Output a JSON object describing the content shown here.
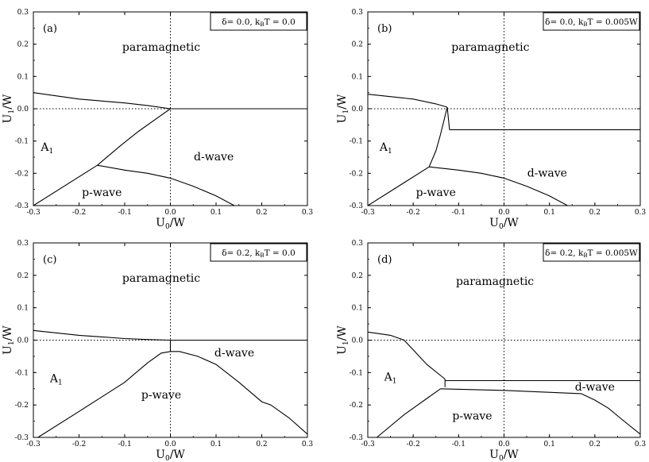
{
  "xtick_labels": [
    "-0.3",
    "-0.2",
    "-0.1",
    "0.0",
    "0.1",
    "0.2",
    "0.3"
  ],
  "ytick_labels": [
    "0.3",
    "0.2",
    "0.1",
    "0.0",
    "-0.1",
    "-0.2",
    "-0.3"
  ],
  "chart_data": [
    {
      "type": "line",
      "panel": "(a)",
      "condition": "δ= 0.0, kBT = 0.0",
      "xlabel": "U0/W",
      "ylabel": "U1/W",
      "xlim": [
        -0.3,
        0.3
      ],
      "ylim": [
        -0.3,
        0.3
      ],
      "reference_lines": {
        "x": 0.0,
        "y": 0.0,
        "style": "dotted"
      },
      "regions": [
        {
          "label": "paramagnetic",
          "x": -0.02,
          "y": 0.18
        },
        {
          "label": "A1",
          "x": -0.27,
          "y": -0.13
        },
        {
          "label": "d-wave",
          "x": 0.095,
          "y": -0.16
        },
        {
          "label": "p-wave",
          "x": -0.15,
          "y": -0.27
        }
      ],
      "series": [
        {
          "x": [
            -0.3,
            -0.2,
            -0.1,
            -0.05,
            0.0
          ],
          "y": [
            0.05,
            0.03,
            0.018,
            0.01,
            0.0
          ]
        },
        {
          "x": [
            0.0,
            0.3
          ],
          "y": [
            0.0,
            0.0
          ]
        },
        {
          "x": [
            0.0,
            -0.03,
            -0.07,
            -0.11,
            -0.16
          ],
          "y": [
            0.0,
            -0.03,
            -0.07,
            -0.115,
            -0.175
          ]
        },
        {
          "x": [
            -0.16,
            -0.3
          ],
          "y": [
            -0.175,
            -0.3
          ]
        },
        {
          "x": [
            -0.16,
            -0.1,
            -0.05,
            0.0,
            0.05,
            0.1,
            0.14
          ],
          "y": [
            -0.175,
            -0.19,
            -0.2,
            -0.215,
            -0.24,
            -0.27,
            -0.3
          ]
        }
      ]
    },
    {
      "type": "line",
      "panel": "(b)",
      "condition": "δ= 0.0, kBT = 0.005W",
      "xlabel": "U0/W",
      "ylabel": "U1/W",
      "xlim": [
        -0.3,
        0.3
      ],
      "ylim": [
        -0.3,
        0.3
      ],
      "reference_lines": {
        "x": 0.0,
        "y": 0.0,
        "style": "dotted"
      },
      "regions": [
        {
          "label": "paramagnetic",
          "x": -0.03,
          "y": 0.18
        },
        {
          "label": "A1",
          "x": -0.26,
          "y": -0.13
        },
        {
          "label": "d-wave",
          "x": 0.095,
          "y": -0.21
        },
        {
          "label": "p-wave",
          "x": -0.15,
          "y": -0.27
        }
      ],
      "series": [
        {
          "x": [
            -0.3,
            -0.2,
            -0.15,
            -0.125
          ],
          "y": [
            0.045,
            0.03,
            0.015,
            0.005
          ]
        },
        {
          "x": [
            -0.125,
            -0.12
          ],
          "y": [
            0.005,
            -0.065
          ]
        },
        {
          "x": [
            -0.12,
            0.3
          ],
          "y": [
            -0.065,
            -0.065
          ]
        },
        {
          "x": [
            -0.125,
            -0.14,
            -0.15,
            -0.165
          ],
          "y": [
            0.005,
            -0.08,
            -0.13,
            -0.18
          ]
        },
        {
          "x": [
            -0.165,
            -0.3
          ],
          "y": [
            -0.18,
            -0.3
          ]
        },
        {
          "x": [
            -0.165,
            -0.1,
            -0.05,
            0.0,
            0.05,
            0.1,
            0.14
          ],
          "y": [
            -0.18,
            -0.19,
            -0.2,
            -0.215,
            -0.24,
            -0.27,
            -0.3
          ]
        }
      ]
    },
    {
      "type": "line",
      "panel": "(c)",
      "condition": "δ= 0.2, kBT = 0.0",
      "xlabel": "U0/W",
      "ylabel": "U1/W",
      "xlim": [
        -0.3,
        0.3
      ],
      "ylim": [
        -0.3,
        0.3
      ],
      "reference_lines": {
        "x": 0.0,
        "y": 0.0,
        "style": "dotted"
      },
      "regions": [
        {
          "label": "paramagnetic",
          "x": -0.02,
          "y": 0.18
        },
        {
          "label": "d-wave",
          "x": 0.14,
          "y": -0.05
        },
        {
          "label": "A1",
          "x": -0.25,
          "y": -0.13
        },
        {
          "label": "p-wave",
          "x": -0.02,
          "y": -0.18
        }
      ],
      "series": [
        {
          "x": [
            -0.3,
            -0.2,
            -0.1,
            -0.05,
            0.0
          ],
          "y": [
            0.03,
            0.015,
            0.005,
            0.002,
            0.0
          ]
        },
        {
          "x": [
            0.0,
            0.3
          ],
          "y": [
            0.0,
            0.0
          ]
        },
        {
          "x": [
            -0.29,
            -0.2,
            -0.1,
            -0.05,
            -0.02,
            0.0,
            0.02,
            0.06,
            0.1,
            0.15,
            0.2,
            0.22,
            0.26,
            0.3
          ],
          "y": [
            -0.3,
            -0.22,
            -0.13,
            -0.07,
            -0.04,
            -0.035,
            -0.035,
            -0.05,
            -0.075,
            -0.13,
            -0.19,
            -0.2,
            -0.24,
            -0.29
          ]
        },
        {
          "x": [
            0.0,
            0.0
          ],
          "y": [
            0.0,
            -0.035
          ]
        }
      ]
    },
    {
      "type": "line",
      "panel": "(d)",
      "condition": "δ= 0.2, kBT = 0.005W",
      "xlabel": "U0/W",
      "ylabel": "U1/W",
      "xlim": [
        -0.3,
        0.3
      ],
      "ylim": [
        -0.3,
        0.3
      ],
      "reference_lines": {
        "x": 0.0,
        "y": 0.0,
        "style": "dotted"
      },
      "regions": [
        {
          "label": "paramagnetic",
          "x": -0.02,
          "y": 0.17
        },
        {
          "label": "A1",
          "x": -0.25,
          "y": -0.125
        },
        {
          "label": "d-wave",
          "x": 0.2,
          "y": -0.155
        },
        {
          "label": "p-wave",
          "x": -0.07,
          "y": -0.245
        }
      ],
      "series": [
        {
          "x": [
            -0.3,
            -0.25,
            -0.22,
            -0.2,
            -0.17,
            -0.13
          ],
          "y": [
            0.025,
            0.015,
            0.0,
            -0.03,
            -0.075,
            -0.12
          ]
        },
        {
          "x": [
            -0.13,
            0.3
          ],
          "y": [
            -0.125,
            -0.125
          ]
        },
        {
          "x": [
            -0.13,
            -0.13
          ],
          "y": [
            -0.12,
            -0.145
          ]
        },
        {
          "x": [
            -0.28,
            -0.22,
            -0.17,
            -0.14
          ],
          "y": [
            -0.3,
            -0.23,
            -0.18,
            -0.15
          ]
        },
        {
          "x": [
            -0.14,
            0.0,
            0.17
          ],
          "y": [
            -0.15,
            -0.155,
            -0.165
          ]
        },
        {
          "x": [
            0.17,
            0.2,
            0.23,
            0.26,
            0.3
          ],
          "y": [
            -0.165,
            -0.185,
            -0.21,
            -0.245,
            -0.29
          ]
        }
      ]
    }
  ]
}
